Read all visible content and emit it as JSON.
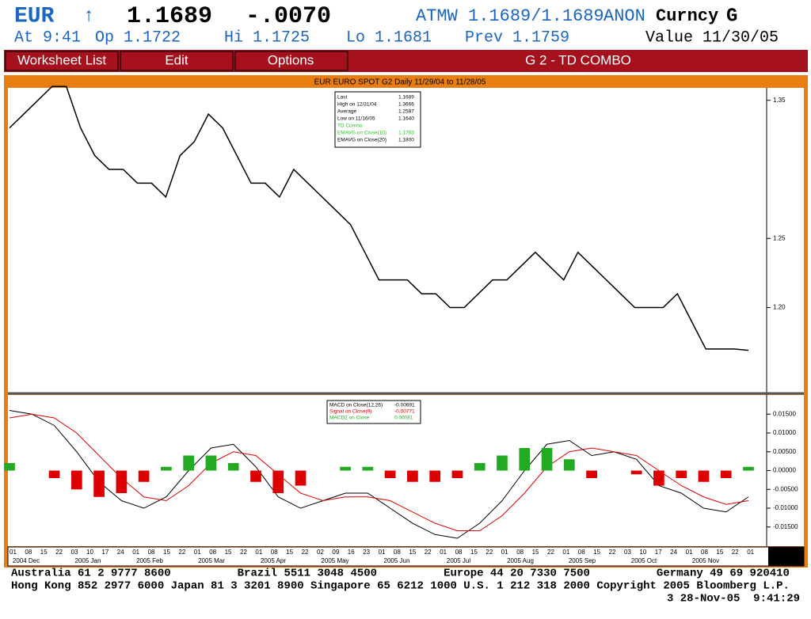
{
  "header": {
    "row1": [
      "EUR",
      "↑",
      "1.1689",
      "-.0070",
      "ATMW 1.1689/1.1689",
      "ANON",
      "Curncy",
      "G"
    ],
    "row2": [
      "At 9:41",
      "Op 1.1722",
      "Hi 1.1725",
      "Lo 1.1681",
      "Prev 1.1759",
      "Value 11/30/05"
    ]
  },
  "menu": {
    "items": [
      "Worksheet List",
      "Edit",
      "Options"
    ],
    "title": "G 2 - TD COMBO"
  },
  "chart_data": [
    {
      "type": "line",
      "title": "EUR EURO SPOT G2 Daily 11/29/04 to 11/28/05",
      "color": "#000000",
      "values": [
        1.33,
        1.34,
        1.35,
        1.36,
        1.36,
        1.33,
        1.31,
        1.3,
        1.3,
        1.29,
        1.29,
        1.28,
        1.31,
        1.32,
        1.34,
        1.33,
        1.31,
        1.29,
        1.29,
        1.28,
        1.3,
        1.29,
        1.28,
        1.27,
        1.26,
        1.24,
        1.22,
        1.22,
        1.22,
        1.21,
        1.21,
        1.2,
        1.2,
        1.21,
        1.22,
        1.22,
        1.23,
        1.24,
        1.23,
        1.22,
        1.24,
        1.23,
        1.22,
        1.21,
        1.2,
        1.2,
        1.2,
        1.21,
        1.19,
        1.17,
        1.17,
        1.17,
        1.169
      ],
      "ylim": [
        1.139,
        1.359
      ],
      "yticks": [
        {
          "value": 1.2,
          "label": "1.20"
        },
        1.25,
        1.35
      ],
      "legend": [
        [
          "Last",
          "1.1689"
        ],
        [
          "High on  12/31/04",
          "1.3666"
        ],
        [
          "Average",
          "1.2587"
        ],
        [
          "Low on  11/16/05",
          "1.1640"
        ],
        [
          "TD Combo",
          ""
        ],
        [
          "EMAVG on Close(10)",
          "1.1763"
        ],
        [
          "EMAVG on Close(20)",
          "1.1800"
        ]
      ]
    },
    {
      "type": "line",
      "ylim": [
        -0.0201,
        0.0201
      ],
      "yticks": [
        {
          "value": 0.015,
          "label": "0.01500"
        },
        {
          "value": 0.01,
          "label": "0.01000"
        },
        {
          "value": 0.005,
          "label": "0.00500"
        },
        {
          "value": 0,
          "label": "0.00000"
        },
        {
          "value": -0.005,
          "label": "-0.00500"
        },
        {
          "value": -0.01,
          "label": "-0.01000"
        },
        {
          "value": -0.015,
          "label": "-0.01500"
        }
      ],
      "series": [
        {
          "name": "MACD on Close(12,26)",
          "last": "-0.00691",
          "color": "#000000",
          "values": [
            0.016,
            0.015,
            0.012,
            0.005,
            -0.003,
            -0.008,
            -0.01,
            -0.007,
            0,
            0.006,
            0.007,
            0.001,
            -0.007,
            -0.01,
            -0.008,
            -0.006,
            -0.006,
            -0.01,
            -0.014,
            -0.017,
            -0.018,
            -0.014,
            -0.008,
            0.0,
            0.007,
            0.008,
            0.004,
            0.005,
            0.003,
            -0.004,
            -0.006,
            -0.01,
            -0.011,
            -0.007
          ]
        },
        {
          "name": "Signal on Close(9)",
          "last": "-0.00771",
          "color": "#dd0000",
          "values": [
            0.014,
            0.015,
            0.014,
            0.01,
            0.004,
            -0.002,
            -0.007,
            -0.008,
            -0.004,
            0.002,
            0.005,
            0.004,
            -0.001,
            -0.006,
            -0.008,
            -0.007,
            -0.007,
            -0.008,
            -0.011,
            -0.014,
            -0.016,
            -0.016,
            -0.012,
            -0.006,
            0.001,
            0.005,
            0.006,
            0.005,
            0.004,
            0.0,
            -0.004,
            -0.007,
            -0.009,
            -0.008
          ]
        },
        {
          "name": "MACD2 on Close",
          "last": "0.00081",
          "color": "#22aa22",
          "negative_color": "#dd0000",
          "bars": true,
          "values": [
            0.002,
            0,
            -0.002,
            -0.005,
            -0.007,
            -0.006,
            -0.003,
            0.001,
            0.004,
            0.004,
            0.002,
            -0.003,
            -0.006,
            -0.004,
            0,
            0.001,
            0.001,
            -0.002,
            -0.003,
            -0.003,
            -0.002,
            0.002,
            0.004,
            0.006,
            0.006,
            0.003,
            -0.002,
            0,
            -0.001,
            -0.004,
            -0.002,
            -0.003,
            -0.002,
            0.001
          ]
        }
      ]
    }
  ],
  "x_axis": {
    "days": [
      "01",
      "08",
      "15",
      "22",
      "03",
      "10",
      "17",
      "24",
      "01",
      "08",
      "15",
      "22",
      "01",
      "08",
      "15",
      "22",
      "01",
      "08",
      "15",
      "22",
      "02",
      "09",
      "16",
      "23",
      "01",
      "08",
      "15",
      "22",
      "01",
      "08",
      "15",
      "22",
      "01",
      "08",
      "15",
      "22",
      "01",
      "08",
      "15",
      "22",
      "03",
      "10",
      "17",
      "24",
      "01",
      "08",
      "15",
      "22",
      "01"
    ],
    "months": [
      "2004 Dec",
      "2005 Jan",
      "2005 Feb",
      "2005 Mar",
      "2005 Apr",
      "2005 May",
      "2005 Jun",
      "2005 Jul",
      "2005 Aug",
      "2005 Sep",
      "2005 Oct",
      "2005 Nov"
    ]
  },
  "footer": [
    "Australia 61 2 9777 8600          Brazil 5511 3048 4500          Europe 44 20 7330 7500          Germany 49 69 920410",
    "Hong Kong 852 2977 6000 Japan 81 3 3201 8900 Singapore 65 6212 1000 U.S. 1 212 318 2000 Copyright 2005 Bloomberg L.P.",
    "3 28-Nov-05  9:41:29"
  ]
}
